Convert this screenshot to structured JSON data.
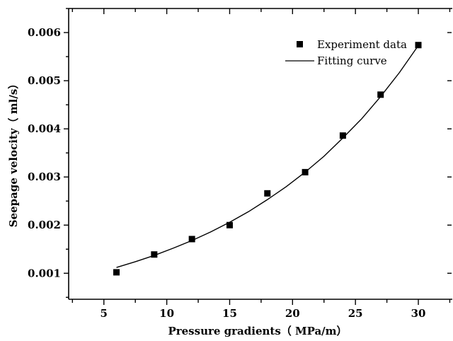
{
  "chart_data": {
    "type": "scatter",
    "xlabel": "Pressure gradients（ MPa/m）",
    "ylabel": "Seepage velocity（ ml/s）",
    "xlim": [
      2.2,
      32.7
    ],
    "ylim": [
      0.00046,
      0.0065
    ],
    "x_ticks": [
      5,
      10,
      15,
      20,
      25,
      30
    ],
    "y_ticks": [
      0.001,
      0.002,
      0.003,
      0.004,
      0.005,
      0.006
    ],
    "x_tick_labels": [
      "5",
      "10",
      "15",
      "20",
      "25",
      "30"
    ],
    "y_tick_labels": [
      "0.001",
      "0.002",
      "0.003",
      "0.004",
      "0.005",
      "0.006"
    ],
    "grid": false,
    "legend_position": "top-right",
    "series": [
      {
        "name": "Experiment data",
        "kind": "scatter",
        "marker": "square",
        "color": "#000000",
        "x": [
          6,
          9,
          12,
          15,
          18,
          21,
          24,
          27,
          30
        ],
        "y": [
          0.00102,
          0.00139,
          0.00171,
          0.002,
          0.00266,
          0.0031,
          0.00386,
          0.00471,
          0.00574
        ]
      },
      {
        "name": "Fitting curve",
        "kind": "line",
        "color": "#000000",
        "x": [
          6,
          7.5,
          9,
          10.5,
          12,
          13.5,
          15,
          16.5,
          18,
          19.5,
          21,
          22.5,
          24,
          25.5,
          27,
          28.5,
          30
        ],
        "y": [
          0.00112,
          0.00124,
          0.00137,
          0.00152,
          0.00168,
          0.00186,
          0.00206,
          0.00228,
          0.00253,
          0.0028,
          0.0031,
          0.00343,
          0.00381,
          0.00421,
          0.00467,
          0.00517,
          0.00573
        ]
      }
    ]
  }
}
